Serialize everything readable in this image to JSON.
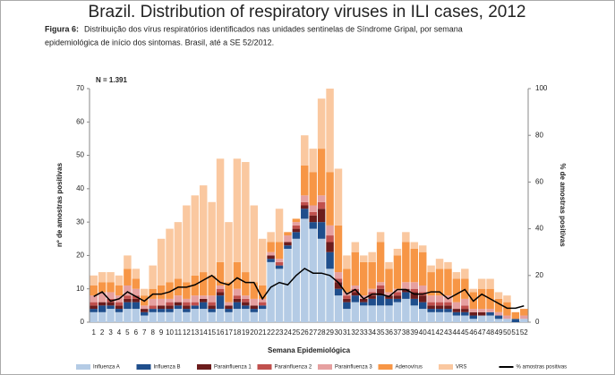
{
  "chart_data": {
    "type": "stacked-bar-line",
    "title": "Brazil. Distribution of respiratory viruses in ILI cases, 2012",
    "figure_label": "Figura 6:",
    "caption": [
      "Distribuição dos vírus respiratórios identificados nas unidades sentinelas de Síndrome Gripal, por semana",
      "epidemiológica de início dos sintomas. Brasil, até a SE 52/2012."
    ],
    "annotation": "N = 1.391",
    "xlabel": "Semana Epidemiológica",
    "ylabel": "nº de amostras positivas",
    "y2label": "% de amostras positivas",
    "categories": [
      "1",
      "2",
      "3",
      "4",
      "5",
      "6",
      "7",
      "8",
      "9",
      "10",
      "11",
      "12",
      "13",
      "14",
      "15",
      "16",
      "17",
      "18",
      "19",
      "20",
      "21",
      "22",
      "23",
      "24",
      "25",
      "26",
      "27",
      "28",
      "29",
      "30",
      "31",
      "32",
      "33",
      "34",
      "35",
      "36",
      "37",
      "38",
      "39",
      "40",
      "41",
      "42",
      "43",
      "44",
      "45",
      "46",
      "47",
      "48",
      "49",
      "50",
      "51",
      "52"
    ],
    "ylim": [
      0,
      70
    ],
    "yticks": [
      0,
      10,
      20,
      30,
      40,
      50,
      60,
      70
    ],
    "y2lim": [
      0,
      100
    ],
    "y2ticks": [
      0,
      20,
      40,
      60,
      80,
      100
    ],
    "series": [
      {
        "name": "Influenza A",
        "color": "#b4cbe5",
        "values": [
          3,
          3,
          4,
          3,
          4,
          4,
          2,
          3,
          3,
          3,
          4,
          3,
          4,
          4,
          3,
          4,
          3,
          4,
          4,
          3,
          4,
          18,
          16,
          22,
          25,
          31,
          28,
          25,
          16,
          8,
          4,
          6,
          5,
          5,
          5,
          5,
          6,
          7,
          5,
          4,
          3,
          3,
          3,
          2,
          2,
          1,
          2,
          2,
          1,
          1,
          0,
          1
        ]
      },
      {
        "name": "Influenza B",
        "color": "#1f4e8c",
        "values": [
          1,
          2,
          1,
          1,
          2,
          2,
          1,
          1,
          1,
          1,
          1,
          1,
          1,
          2,
          1,
          4,
          1,
          2,
          1,
          1,
          1,
          1,
          1,
          1,
          2,
          3,
          2,
          5,
          5,
          2,
          2,
          2,
          1,
          2,
          3,
          2,
          1,
          2,
          2,
          2,
          1,
          1,
          1,
          1,
          1,
          1,
          0,
          1,
          1,
          0,
          1,
          0
        ]
      },
      {
        "name": "Parainfluenza 1",
        "color": "#6b1c1c",
        "values": [
          1,
          1,
          1,
          1,
          1,
          1,
          1,
          0,
          1,
          1,
          1,
          1,
          0,
          1,
          1,
          1,
          1,
          1,
          1,
          1,
          0,
          1,
          0,
          1,
          1,
          1,
          2,
          4,
          3,
          2,
          1,
          1,
          1,
          1,
          2,
          1,
          1,
          1,
          2,
          2,
          1,
          1,
          1,
          1,
          1,
          1,
          1,
          0,
          0,
          0,
          0,
          0
        ]
      },
      {
        "name": "Parainfluenza 2",
        "color": "#c0504d",
        "values": [
          1,
          0,
          1,
          1,
          1,
          1,
          0,
          1,
          0,
          1,
          0,
          1,
          1,
          0,
          1,
          1,
          0,
          1,
          1,
          0,
          1,
          0,
          1,
          0,
          1,
          1,
          1,
          2,
          2,
          1,
          1,
          1,
          0,
          1,
          1,
          0,
          1,
          0,
          1,
          1,
          1,
          1,
          1,
          0,
          1,
          0,
          0,
          0,
          0,
          0,
          0,
          0
        ]
      },
      {
        "name": "Parainfluenza 3",
        "color": "#e6a0a0",
        "values": [
          2,
          3,
          2,
          2,
          3,
          2,
          1,
          2,
          2,
          1,
          2,
          1,
          2,
          1,
          2,
          1,
          1,
          2,
          1,
          2,
          1,
          1,
          1,
          2,
          1,
          2,
          2,
          2,
          3,
          2,
          1,
          1,
          1,
          1,
          1,
          1,
          1,
          2,
          2,
          2,
          2,
          2,
          2,
          2,
          2,
          1,
          1,
          1,
          1,
          1,
          0,
          1
        ]
      },
      {
        "name": "Adenovírus",
        "color": "#f79646",
        "values": [
          3,
          3,
          3,
          3,
          5,
          3,
          3,
          3,
          4,
          5,
          5,
          5,
          6,
          7,
          6,
          7,
          6,
          8,
          7,
          5,
          4,
          3,
          5,
          1,
          1,
          9,
          10,
          14,
          16,
          14,
          7,
          10,
          10,
          8,
          12,
          7,
          10,
          12,
          10,
          10,
          7,
          8,
          8,
          7,
          6,
          5,
          6,
          6,
          4,
          4,
          2,
          2
        ]
      },
      {
        "name": "VRS",
        "color": "#fac8a0",
        "values": [
          3,
          3,
          3,
          3,
          4,
          3,
          2,
          7,
          14,
          16,
          17,
          23,
          24,
          26,
          22,
          31,
          18,
          31,
          33,
          23,
          14,
          3,
          10,
          0,
          0,
          9,
          7,
          15,
          25,
          17,
          4,
          3,
          2,
          3,
          3,
          2,
          2,
          3,
          2,
          2,
          2,
          3,
          2,
          2,
          3,
          1,
          3,
          3,
          2,
          2,
          0,
          0
        ]
      },
      {
        "name": "% amostras positivas",
        "color": "#000000",
        "axis": "y2",
        "values": [
          11,
          13,
          9,
          10,
          13,
          11,
          9,
          12,
          12,
          13,
          15,
          15,
          16,
          18,
          20,
          17,
          16,
          19,
          17,
          17,
          10,
          15,
          17,
          16,
          20,
          23,
          21,
          21,
          20,
          17,
          12,
          14,
          10,
          12,
          12,
          11,
          14,
          14,
          12,
          12,
          13,
          13,
          10,
          12,
          14,
          9,
          12,
          10,
          8,
          6,
          6,
          7
        ]
      }
    ]
  }
}
